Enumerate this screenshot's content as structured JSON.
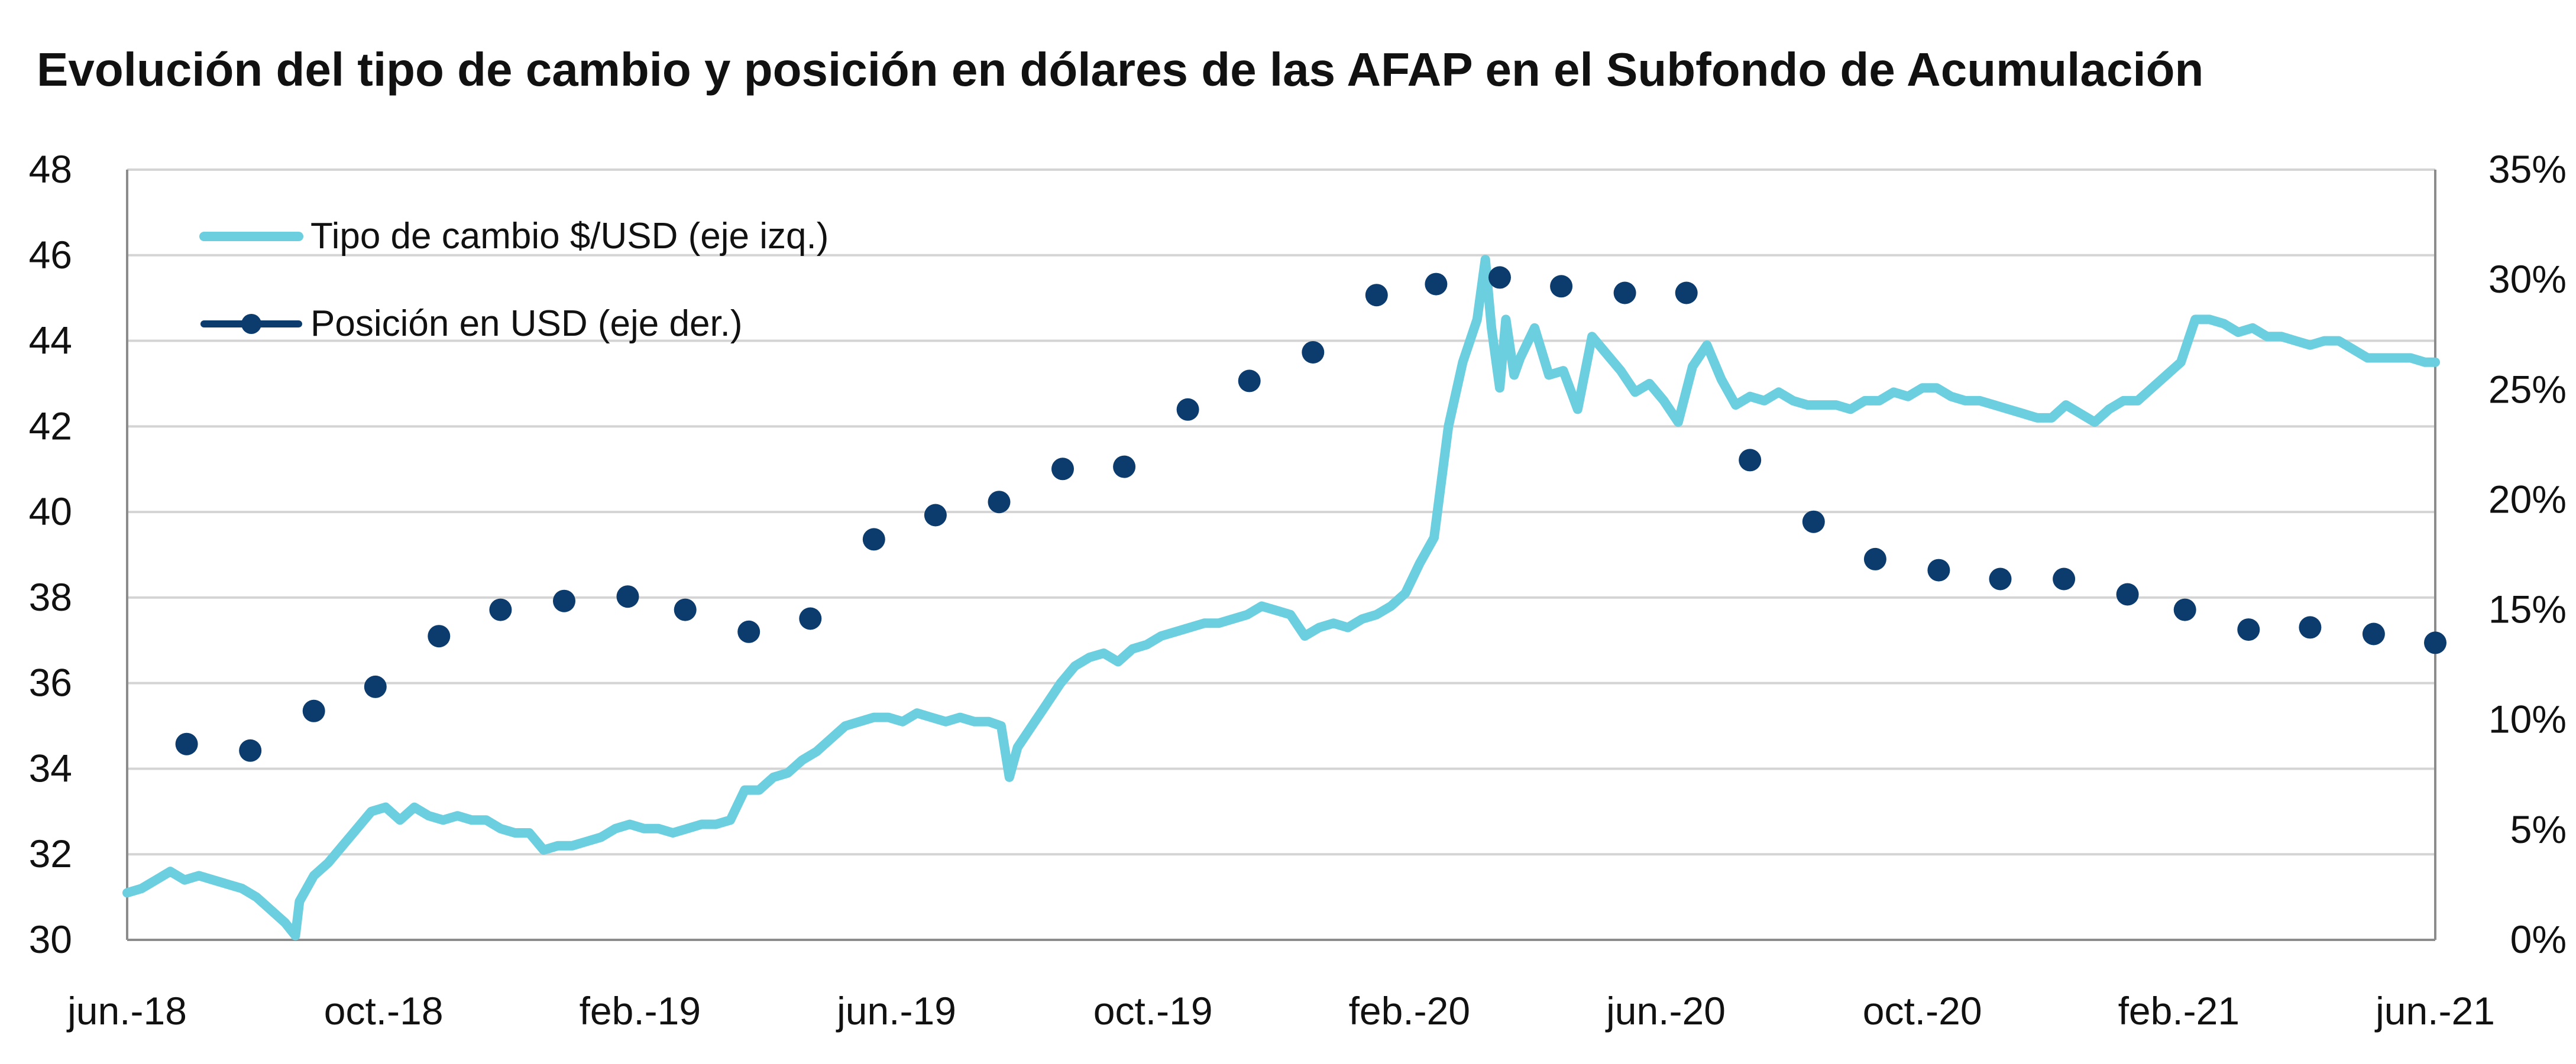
{
  "chart_data": {
    "type": "line",
    "title": "Evolución del tipo de cambio y posición en dólares de las AFAP en el Subfondo de Acumulación",
    "x_range": [
      "2018-06-01",
      "2021-06-30"
    ],
    "x_tick_labels": [
      "jun.-18",
      "oct.-18",
      "feb.-19",
      "jun.-19",
      "oct.-19",
      "feb.-20",
      "jun.-20",
      "oct.-20",
      "feb.-21",
      "jun.-21"
    ],
    "y_left": {
      "range": [
        30,
        48
      ],
      "ticks": [
        "30",
        "32",
        "34",
        "36",
        "38",
        "40",
        "42",
        "44",
        "46",
        "48"
      ]
    },
    "y_right": {
      "range": [
        0,
        35
      ],
      "ticks": [
        "0%",
        "5%",
        "10%",
        "15%",
        "20%",
        "25%",
        "30%",
        "35%"
      ]
    },
    "grid": "horizontal",
    "legend_position": "top-left",
    "series": [
      {
        "name": "Tipo de cambio $/USD (eje izq.)",
        "axis": "left",
        "style": "line",
        "color": "#6BCFE0",
        "points": [
          [
            "2018-06-01",
            31.1
          ],
          [
            "2018-06-08",
            31.2
          ],
          [
            "2018-06-15",
            31.4
          ],
          [
            "2018-06-22",
            31.6
          ],
          [
            "2018-06-29",
            31.4
          ],
          [
            "2018-07-06",
            31.5
          ],
          [
            "2018-07-13",
            31.4
          ],
          [
            "2018-07-20",
            31.3
          ],
          [
            "2018-07-27",
            31.2
          ],
          [
            "2018-08-03",
            31.0
          ],
          [
            "2018-08-10",
            30.7
          ],
          [
            "2018-08-17",
            30.4
          ],
          [
            "2018-08-22",
            30.1
          ],
          [
            "2018-08-24",
            30.9
          ],
          [
            "2018-08-31",
            31.5
          ],
          [
            "2018-09-07",
            31.8
          ],
          [
            "2018-09-14",
            32.2
          ],
          [
            "2018-09-21",
            32.6
          ],
          [
            "2018-09-28",
            33.0
          ],
          [
            "2018-10-05",
            33.1
          ],
          [
            "2018-10-12",
            32.8
          ],
          [
            "2018-10-19",
            33.1
          ],
          [
            "2018-10-26",
            32.9
          ],
          [
            "2018-11-02",
            32.8
          ],
          [
            "2018-11-09",
            32.9
          ],
          [
            "2018-11-16",
            32.8
          ],
          [
            "2018-11-23",
            32.8
          ],
          [
            "2018-11-30",
            32.6
          ],
          [
            "2018-12-07",
            32.5
          ],
          [
            "2018-12-14",
            32.5
          ],
          [
            "2018-12-21",
            32.1
          ],
          [
            "2018-12-28",
            32.2
          ],
          [
            "2019-01-04",
            32.2
          ],
          [
            "2019-01-11",
            32.3
          ],
          [
            "2019-01-18",
            32.4
          ],
          [
            "2019-01-25",
            32.6
          ],
          [
            "2019-02-01",
            32.7
          ],
          [
            "2019-02-08",
            32.6
          ],
          [
            "2019-02-15",
            32.6
          ],
          [
            "2019-02-22",
            32.5
          ],
          [
            "2019-03-01",
            32.6
          ],
          [
            "2019-03-08",
            32.7
          ],
          [
            "2019-03-15",
            32.7
          ],
          [
            "2019-03-22",
            32.8
          ],
          [
            "2019-03-29",
            33.5
          ],
          [
            "2019-04-05",
            33.5
          ],
          [
            "2019-04-12",
            33.8
          ],
          [
            "2019-04-19",
            33.9
          ],
          [
            "2019-04-26",
            34.2
          ],
          [
            "2019-05-03",
            34.4
          ],
          [
            "2019-05-10",
            34.7
          ],
          [
            "2019-05-17",
            35.0
          ],
          [
            "2019-05-24",
            35.1
          ],
          [
            "2019-05-31",
            35.2
          ],
          [
            "2019-06-07",
            35.2
          ],
          [
            "2019-06-14",
            35.1
          ],
          [
            "2019-06-21",
            35.3
          ],
          [
            "2019-06-28",
            35.2
          ],
          [
            "2019-07-05",
            35.1
          ],
          [
            "2019-07-12",
            35.2
          ],
          [
            "2019-07-19",
            35.1
          ],
          [
            "2019-07-26",
            35.1
          ],
          [
            "2019-08-01",
            35.0
          ],
          [
            "2019-08-05",
            33.8
          ],
          [
            "2019-08-09",
            34.5
          ],
          [
            "2019-08-16",
            35.0
          ],
          [
            "2019-08-23",
            35.5
          ],
          [
            "2019-08-30",
            36.0
          ],
          [
            "2019-09-06",
            36.4
          ],
          [
            "2019-09-13",
            36.6
          ],
          [
            "2019-09-20",
            36.7
          ],
          [
            "2019-09-27",
            36.5
          ],
          [
            "2019-10-04",
            36.8
          ],
          [
            "2019-10-11",
            36.9
          ],
          [
            "2019-10-18",
            37.1
          ],
          [
            "2019-10-25",
            37.2
          ],
          [
            "2019-11-01",
            37.3
          ],
          [
            "2019-11-08",
            37.4
          ],
          [
            "2019-11-15",
            37.4
          ],
          [
            "2019-11-22",
            37.5
          ],
          [
            "2019-11-29",
            37.6
          ],
          [
            "2019-12-06",
            37.8
          ],
          [
            "2019-12-13",
            37.7
          ],
          [
            "2019-12-20",
            37.6
          ],
          [
            "2019-12-27",
            37.1
          ],
          [
            "2020-01-03",
            37.3
          ],
          [
            "2020-01-10",
            37.4
          ],
          [
            "2020-01-17",
            37.3
          ],
          [
            "2020-01-24",
            37.5
          ],
          [
            "2020-01-31",
            37.6
          ],
          [
            "2020-02-07",
            37.8
          ],
          [
            "2020-02-14",
            38.1
          ],
          [
            "2020-02-21",
            38.8
          ],
          [
            "2020-02-28",
            39.4
          ],
          [
            "2020-03-06",
            42.0
          ],
          [
            "2020-03-13",
            43.5
          ],
          [
            "2020-03-20",
            44.5
          ],
          [
            "2020-03-24",
            45.9
          ],
          [
            "2020-03-27",
            44.3
          ],
          [
            "2020-03-31",
            42.9
          ],
          [
            "2020-04-03",
            44.5
          ],
          [
            "2020-04-07",
            43.2
          ],
          [
            "2020-04-10",
            43.6
          ],
          [
            "2020-04-17",
            44.3
          ],
          [
            "2020-04-24",
            43.2
          ],
          [
            "2020-05-01",
            43.3
          ],
          [
            "2020-05-08",
            42.4
          ],
          [
            "2020-05-15",
            44.1
          ],
          [
            "2020-05-22",
            43.7
          ],
          [
            "2020-05-29",
            43.3
          ],
          [
            "2020-06-05",
            42.8
          ],
          [
            "2020-06-12",
            43.0
          ],
          [
            "2020-06-19",
            42.6
          ],
          [
            "2020-06-26",
            42.1
          ],
          [
            "2020-07-03",
            43.4
          ],
          [
            "2020-07-10",
            43.9
          ],
          [
            "2020-07-17",
            43.1
          ],
          [
            "2020-07-24",
            42.5
          ],
          [
            "2020-07-31",
            42.7
          ],
          [
            "2020-08-07",
            42.6
          ],
          [
            "2020-08-14",
            42.8
          ],
          [
            "2020-08-21",
            42.6
          ],
          [
            "2020-08-28",
            42.5
          ],
          [
            "2020-09-04",
            42.5
          ],
          [
            "2020-09-11",
            42.5
          ],
          [
            "2020-09-18",
            42.4
          ],
          [
            "2020-09-25",
            42.6
          ],
          [
            "2020-10-02",
            42.6
          ],
          [
            "2020-10-09",
            42.8
          ],
          [
            "2020-10-16",
            42.7
          ],
          [
            "2020-10-23",
            42.9
          ],
          [
            "2020-10-30",
            42.9
          ],
          [
            "2020-11-06",
            42.7
          ],
          [
            "2020-11-13",
            42.6
          ],
          [
            "2020-11-20",
            42.6
          ],
          [
            "2020-11-27",
            42.5
          ],
          [
            "2020-12-04",
            42.4
          ],
          [
            "2020-12-11",
            42.3
          ],
          [
            "2020-12-18",
            42.2
          ],
          [
            "2020-12-25",
            42.2
          ],
          [
            "2021-01-01",
            42.5
          ],
          [
            "2021-01-08",
            42.3
          ],
          [
            "2021-01-15",
            42.1
          ],
          [
            "2021-01-22",
            42.4
          ],
          [
            "2021-01-29",
            42.6
          ],
          [
            "2021-02-05",
            42.6
          ],
          [
            "2021-02-12",
            42.9
          ],
          [
            "2021-02-19",
            43.2
          ],
          [
            "2021-02-26",
            43.5
          ],
          [
            "2021-03-05",
            44.5
          ],
          [
            "2021-03-12",
            44.5
          ],
          [
            "2021-03-19",
            44.4
          ],
          [
            "2021-03-26",
            44.2
          ],
          [
            "2021-04-02",
            44.3
          ],
          [
            "2021-04-09",
            44.1
          ],
          [
            "2021-04-16",
            44.1
          ],
          [
            "2021-04-23",
            44.0
          ],
          [
            "2021-04-30",
            43.9
          ],
          [
            "2021-05-07",
            44.0
          ],
          [
            "2021-05-14",
            44.0
          ],
          [
            "2021-05-21",
            43.8
          ],
          [
            "2021-05-28",
            43.6
          ],
          [
            "2021-06-04",
            43.6
          ],
          [
            "2021-06-11",
            43.6
          ],
          [
            "2021-06-18",
            43.6
          ],
          [
            "2021-06-25",
            43.5
          ],
          [
            "2021-06-30",
            43.5
          ]
        ]
      },
      {
        "name": "Posición en USD (eje der.)",
        "axis": "right",
        "style": "markers",
        "color": "#0C3C6E",
        "points": [
          [
            "2018-06-30",
            8.9
          ],
          [
            "2018-07-31",
            8.6
          ],
          [
            "2018-08-31",
            10.4
          ],
          [
            "2018-09-30",
            11.5
          ],
          [
            "2018-10-31",
            13.8
          ],
          [
            "2018-11-30",
            15.0
          ],
          [
            "2018-12-31",
            15.4
          ],
          [
            "2019-01-31",
            15.6
          ],
          [
            "2019-02-28",
            15.0
          ],
          [
            "2019-03-31",
            14.0
          ],
          [
            "2019-04-30",
            14.6
          ],
          [
            "2019-05-31",
            18.2
          ],
          [
            "2019-06-30",
            19.3
          ],
          [
            "2019-07-31",
            19.9
          ],
          [
            "2019-08-31",
            21.4
          ],
          [
            "2019-09-30",
            21.5
          ],
          [
            "2019-10-31",
            24.1
          ],
          [
            "2019-11-30",
            25.4
          ],
          [
            "2019-12-31",
            26.7
          ],
          [
            "2020-01-31",
            29.3
          ],
          [
            "2020-02-29",
            29.8
          ],
          [
            "2020-03-31",
            30.1
          ],
          [
            "2020-04-30",
            29.7
          ],
          [
            "2020-05-31",
            29.4
          ],
          [
            "2020-06-30",
            29.4
          ],
          [
            "2020-07-31",
            21.8
          ],
          [
            "2020-08-31",
            19.0
          ],
          [
            "2020-09-30",
            17.3
          ],
          [
            "2020-10-31",
            16.8
          ],
          [
            "2020-11-30",
            16.4
          ],
          [
            "2020-12-31",
            16.4
          ],
          [
            "2021-01-31",
            15.7
          ],
          [
            "2021-02-28",
            15.0
          ],
          [
            "2021-03-31",
            14.1
          ],
          [
            "2021-04-30",
            14.2
          ],
          [
            "2021-05-31",
            13.9
          ],
          [
            "2021-06-30",
            13.5
          ]
        ]
      }
    ]
  }
}
